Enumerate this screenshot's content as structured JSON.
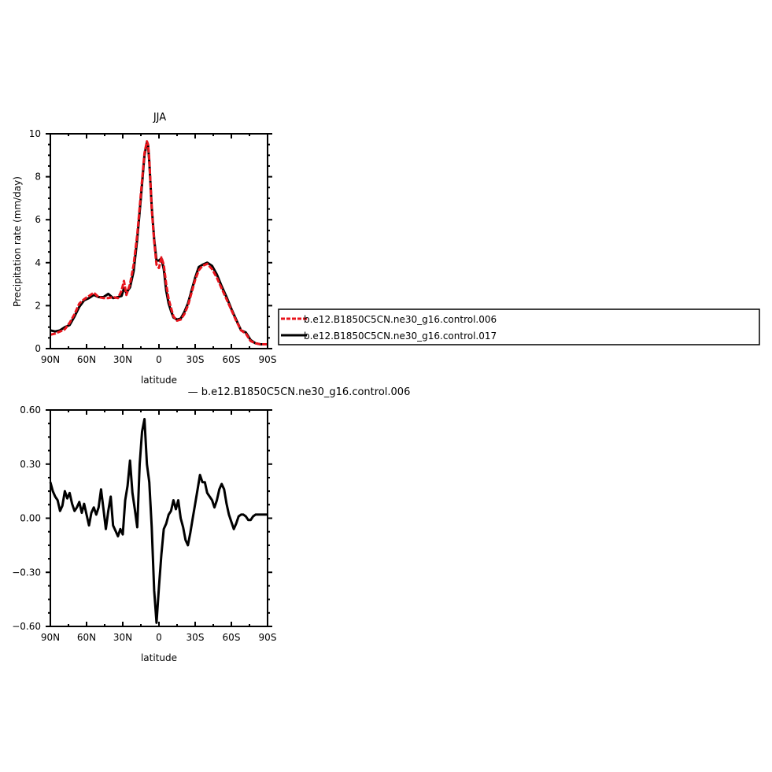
{
  "chart_data": [
    {
      "type": "line",
      "title": "JJA",
      "xlabel": "latitude",
      "ylabel": "Precipitation rate (mm/day)",
      "xlim": [
        90,
        -90
      ],
      "ylim": [
        0,
        10
      ],
      "x_ticks": [
        90,
        60,
        30,
        0,
        -30,
        -60,
        -90
      ],
      "x_tick_labels": [
        "90N",
        "60N",
        "30N",
        "0",
        "30S",
        "60S",
        "90S"
      ],
      "y_ticks": [
        0,
        2,
        4,
        6,
        8,
        10
      ],
      "y_tick_labels": [
        "0",
        "2",
        "4",
        "6",
        "8",
        "10"
      ],
      "legend_position": "right",
      "series": [
        {
          "name": "b.e12.B1850C5CN.ne30_g16.control.006",
          "color": "#e8141c",
          "style": "dashed",
          "x": [
            90,
            86,
            82,
            78,
            74,
            70,
            66,
            62,
            58,
            54,
            50,
            46,
            42,
            38,
            34,
            31,
            29,
            27,
            24,
            21,
            18,
            15,
            12,
            10,
            9,
            8,
            6,
            4,
            2,
            0,
            -2,
            -4,
            -6,
            -8,
            -10,
            -12,
            -15,
            -18,
            -21,
            -24,
            -27,
            -30,
            -33,
            -36,
            -40,
            -44,
            -48,
            -52,
            -56,
            -60,
            -64,
            -68,
            -72,
            -76,
            -80,
            -84,
            -88,
            -90
          ],
          "y": [
            0.65,
            0.7,
            0.8,
            0.9,
            1.2,
            1.6,
            2.1,
            2.3,
            2.45,
            2.6,
            2.4,
            2.35,
            2.35,
            2.4,
            2.35,
            2.7,
            3.15,
            2.5,
            3.0,
            3.9,
            5.3,
            7.2,
            9.1,
            9.65,
            9.5,
            8.8,
            6.5,
            5.0,
            3.9,
            3.75,
            4.25,
            3.9,
            3.0,
            2.3,
            1.9,
            1.5,
            1.3,
            1.35,
            1.6,
            2.0,
            2.6,
            3.2,
            3.65,
            3.85,
            3.95,
            3.7,
            3.3,
            2.8,
            2.3,
            1.8,
            1.3,
            0.85,
            0.7,
            0.35,
            0.25,
            0.2,
            0.2,
            0.2
          ]
        },
        {
          "name": "b.e12.B1850C5CN.ne30_g16.control.017",
          "color": "#000000",
          "style": "solid",
          "x": [
            90,
            86,
            82,
            78,
            74,
            70,
            66,
            62,
            58,
            54,
            50,
            46,
            42,
            38,
            34,
            31,
            29,
            27,
            24,
            21,
            18,
            15,
            12,
            10,
            9,
            8,
            6,
            4,
            2,
            0,
            -2,
            -4,
            -6,
            -8,
            -10,
            -12,
            -15,
            -18,
            -21,
            -24,
            -27,
            -30,
            -33,
            -36,
            -40,
            -44,
            -48,
            -52,
            -56,
            -60,
            -64,
            -68,
            -72,
            -76,
            -80,
            -84,
            -88,
            -90
          ],
          "y": [
            0.85,
            0.8,
            0.85,
            1.0,
            1.1,
            1.5,
            1.95,
            2.25,
            2.35,
            2.5,
            2.4,
            2.4,
            2.55,
            2.35,
            2.4,
            2.45,
            2.8,
            2.6,
            2.85,
            3.6,
            5.1,
            7.0,
            9.0,
            9.6,
            9.45,
            8.7,
            6.6,
            5.1,
            4.1,
            4.1,
            4.2,
            3.7,
            2.7,
            2.1,
            1.75,
            1.45,
            1.35,
            1.4,
            1.7,
            2.1,
            2.7,
            3.3,
            3.8,
            3.9,
            4.0,
            3.85,
            3.45,
            2.9,
            2.4,
            1.85,
            1.35,
            0.85,
            0.75,
            0.4,
            0.25,
            0.2,
            0.2,
            0.2
          ]
        }
      ]
    },
    {
      "type": "line",
      "title": "— b.e12.B1850C5CN.ne30_g16.control.006",
      "xlabel": "latitude",
      "ylabel": "",
      "xlim": [
        90,
        -90
      ],
      "ylim": [
        -0.6,
        0.6
      ],
      "x_ticks": [
        90,
        60,
        30,
        0,
        -30,
        -60,
        -90
      ],
      "x_tick_labels": [
        "90N",
        "60N",
        "30N",
        "0",
        "30S",
        "60S",
        "90S"
      ],
      "y_ticks": [
        -0.6,
        -0.3,
        0,
        0.3,
        0.6
      ],
      "y_tick_labels": [
        "-0.60",
        "-0.30",
        "0.00",
        "0.30",
        "0.60"
      ],
      "series": [
        {
          "color": "#000000",
          "style": "solid",
          "x": [
            90,
            88,
            86,
            84,
            82,
            80,
            78,
            76,
            74,
            72,
            70,
            68,
            66,
            64,
            62,
            60,
            58,
            56,
            54,
            52,
            50,
            48,
            46,
            44,
            42,
            40,
            38,
            36,
            34,
            32,
            30,
            28,
            26,
            24,
            22,
            20,
            18,
            16,
            14,
            12,
            10,
            8,
            6,
            4,
            2,
            0,
            -2,
            -4,
            -6,
            -8,
            -10,
            -12,
            -14,
            -16,
            -18,
            -20,
            -22,
            -24,
            -26,
            -28,
            -30,
            -32,
            -34,
            -36,
            -38,
            -40,
            -42,
            -44,
            -46,
            -48,
            -50,
            -52,
            -54,
            -56,
            -58,
            -60,
            -62,
            -64,
            -66,
            -68,
            -70,
            -72,
            -74,
            -76,
            -78,
            -80,
            -82,
            -84,
            -86,
            -88,
            -90
          ],
          "y": [
            0.2,
            0.15,
            0.12,
            0.1,
            0.04,
            0.07,
            0.15,
            0.11,
            0.14,
            0.08,
            0.04,
            0.06,
            0.09,
            0.03,
            0.08,
            0.02,
            -0.04,
            0.03,
            0.06,
            0.02,
            0.06,
            0.16,
            0.05,
            -0.06,
            0.04,
            0.12,
            -0.04,
            -0.07,
            -0.1,
            -0.06,
            -0.09,
            0.1,
            0.18,
            0.32,
            0.14,
            0.05,
            -0.05,
            0.3,
            0.48,
            0.55,
            0.3,
            0.2,
            -0.05,
            -0.4,
            -0.58,
            -0.38,
            -0.2,
            -0.06,
            -0.03,
            0.02,
            0.04,
            0.1,
            0.05,
            0.1,
            0.0,
            -0.05,
            -0.12,
            -0.15,
            -0.08,
            0.0,
            0.08,
            0.16,
            0.24,
            0.2,
            0.2,
            0.14,
            0.12,
            0.1,
            0.06,
            0.1,
            0.16,
            0.19,
            0.16,
            0.08,
            0.02,
            -0.02,
            -0.06,
            -0.03,
            0.01,
            0.02,
            0.02,
            0.01,
            -0.01,
            -0.01,
            0.01,
            0.02,
            0.02,
            0.02,
            0.02,
            0.02,
            0.02
          ]
        }
      ]
    }
  ]
}
